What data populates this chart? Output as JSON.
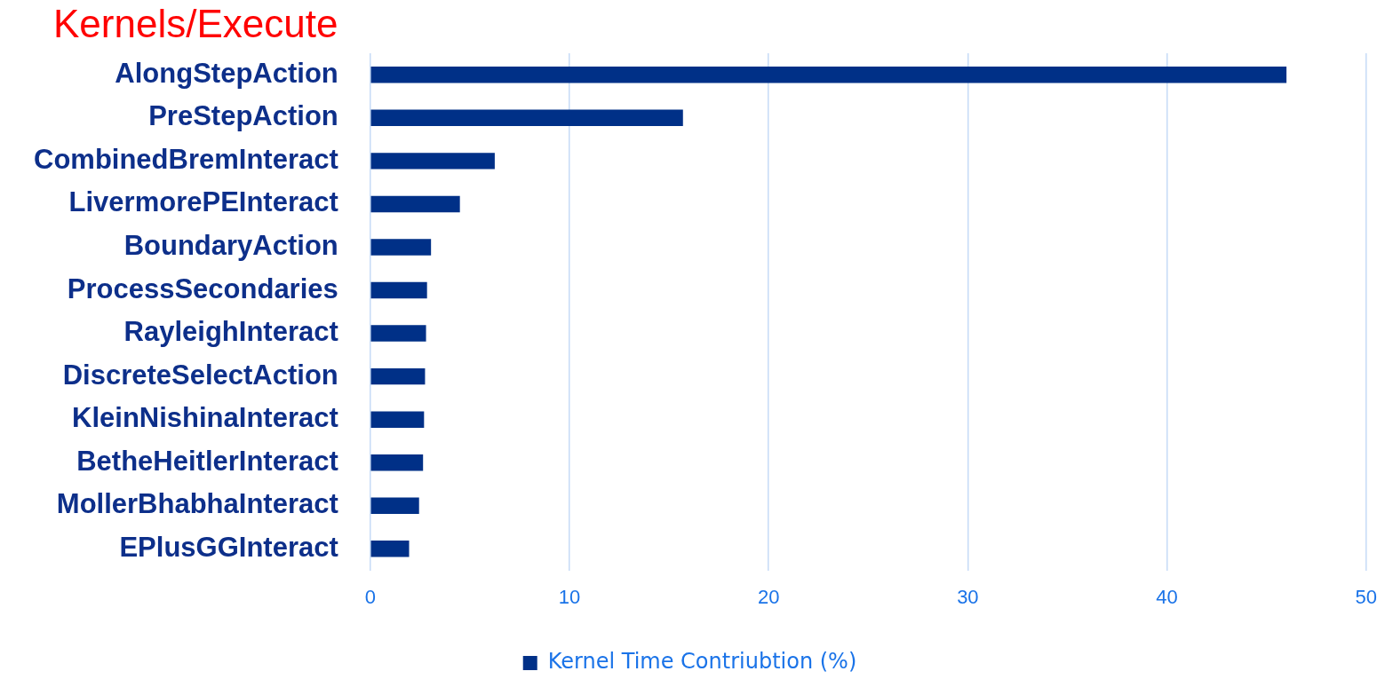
{
  "chart_data": {
    "type": "bar",
    "orientation": "horizontal",
    "title": "Kernels/Execute",
    "categories": [
      "AlongStepAction",
      "PreStepAction",
      "CombinedBremInteract",
      "LivermorePEInteract",
      "BoundaryAction",
      "ProcessSecondaries",
      "RayleighInteract",
      "DiscreteSelectAction",
      "KleinNishinaInteract",
      "BetheHeitlerInteract",
      "MollerBhabhaInteract",
      "EPlusGGInteract"
    ],
    "series": [
      {
        "name": "Kernel Time Contriubtion (%)",
        "color": "#003087",
        "values": [
          46.0,
          15.7,
          6.25,
          4.5,
          3.05,
          2.85,
          2.8,
          2.75,
          2.7,
          2.65,
          2.45,
          1.95
        ]
      }
    ],
    "xlim": [
      0,
      50
    ],
    "xticks": [
      0,
      10,
      20,
      30,
      40,
      50
    ],
    "grid": "x",
    "legend": "bottom"
  }
}
